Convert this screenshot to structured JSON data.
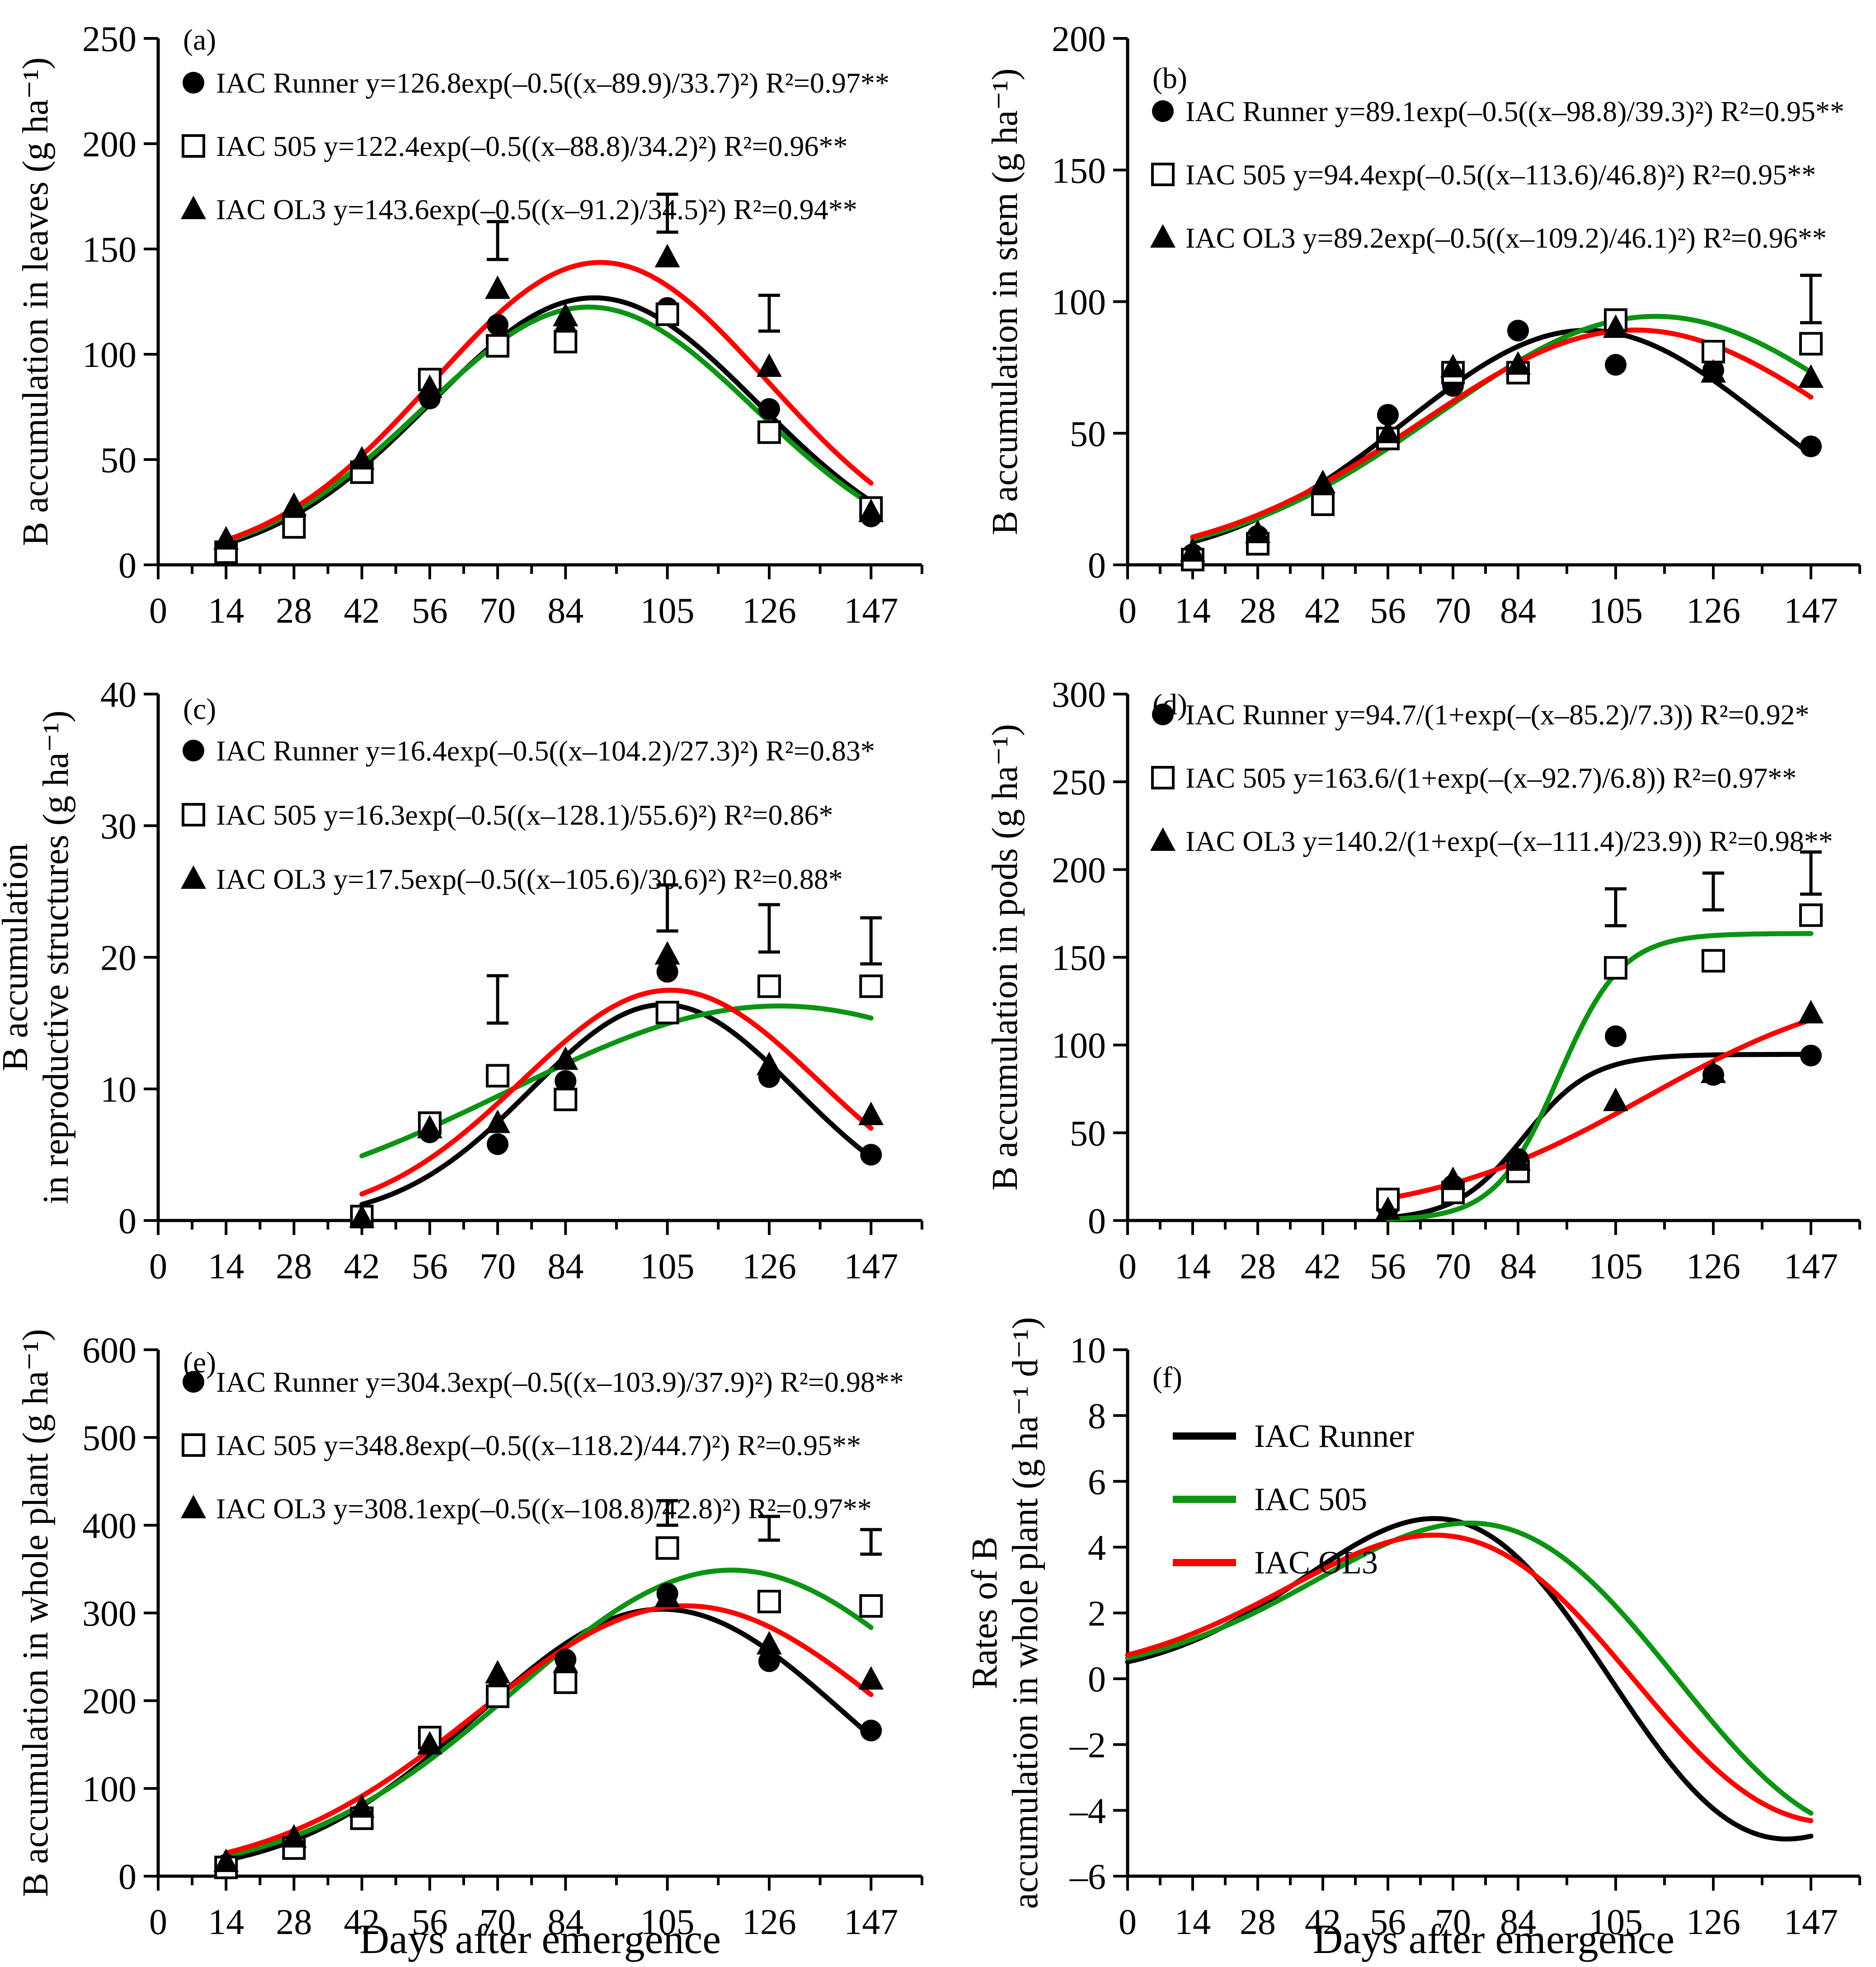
{
  "figure": {
    "xlabel": "Days after emergence",
    "x_ticks": [
      0,
      14,
      28,
      42,
      56,
      70,
      84,
      105,
      126,
      147
    ],
    "x_axis_max": 157.5,
    "x_data_max": 147,
    "series": [
      {
        "name": "IAC Runner",
        "color": "#000000",
        "marker": "filled-circle"
      },
      {
        "name": "IAC 505",
        "color": "#0b9413",
        "marker": "open-square"
      },
      {
        "name": "IAC OL3",
        "color": "#fe0000",
        "marker": "filled-triangle"
      }
    ]
  },
  "chart_data": [
    {
      "id": "a",
      "type": "scatter",
      "panel_label": "(a)",
      "y_title_lines": [
        "B accumulation in leaves (g ha⁻¹)"
      ],
      "ylim": [
        0,
        250
      ],
      "yticks": [
        0,
        50,
        100,
        150,
        200,
        250
      ],
      "legend_type": "markers",
      "legend": [
        {
          "series": "IAC Runner",
          "marker": "filled-circle",
          "text": "IAC Runner y=126.8exp(–0.5((x–89.9)/33.7)²) R²=0.97**"
        },
        {
          "series": "IAC 505",
          "marker": "open-square",
          "text": "IAC 505 y=122.4exp(–0.5((x–88.8)/34.2)²) R²=0.96**"
        },
        {
          "series": "IAC OL3",
          "marker": "filled-triangle",
          "text": "IAC OL3 y=143.6exp(–0.5((x–91.2)/34.5)²) R²=0.94**"
        }
      ],
      "fits": [
        {
          "series": "IAC Runner",
          "model": "gaussian",
          "params": [
            126.8,
            89.9,
            33.7
          ],
          "range": [
            14,
            147
          ]
        },
        {
          "series": "IAC 505",
          "model": "gaussian",
          "params": [
            122.4,
            88.8,
            34.2
          ],
          "range": [
            14,
            147
          ]
        },
        {
          "series": "IAC OL3",
          "model": "gaussian",
          "params": [
            143.6,
            91.2,
            34.5
          ],
          "range": [
            14,
            147
          ]
        }
      ],
      "points": {
        "IAC Runner": [
          [
            14,
            8
          ],
          [
            28,
            20
          ],
          [
            42,
            45
          ],
          [
            56,
            79
          ],
          [
            70,
            114
          ],
          [
            84,
            110
          ],
          [
            105,
            122
          ],
          [
            126,
            74
          ],
          [
            147,
            23
          ]
        ],
        "IAC 505": [
          [
            14,
            6
          ],
          [
            28,
            18
          ],
          [
            42,
            44
          ],
          [
            56,
            88
          ],
          [
            70,
            104
          ],
          [
            84,
            106
          ],
          [
            105,
            119
          ],
          [
            126,
            63
          ],
          [
            147,
            27
          ]
        ],
        "IAC OL3": [
          [
            14,
            12
          ],
          [
            28,
            28
          ],
          [
            42,
            50
          ],
          [
            56,
            84
          ],
          [
            70,
            131
          ],
          [
            84,
            118
          ],
          [
            105,
            146
          ],
          [
            126,
            94
          ],
          [
            147,
            25
          ]
        ]
      },
      "error_bars": [
        {
          "x": 70,
          "low": 145,
          "high": 163
        },
        {
          "x": 105,
          "low": 158,
          "high": 176
        },
        {
          "x": 126,
          "low": 111,
          "high": 128
        }
      ]
    },
    {
      "id": "b",
      "type": "scatter",
      "panel_label": "(b)",
      "y_title_lines": [
        "B accumulation in stem (g ha⁻¹)"
      ],
      "ylim": [
        0,
        200
      ],
      "yticks": [
        0,
        50,
        100,
        150,
        200
      ],
      "legend_type": "markers",
      "legend": [
        {
          "series": "IAC Runner",
          "marker": "filled-circle",
          "text": "IAC Runner y=89.1exp(–0.5((x–98.8)/39.3)²) R²=0.95**"
        },
        {
          "series": "IAC 505",
          "marker": "open-square",
          "text": "IAC 505 y=94.4exp(–0.5((x–113.6)/46.8)²) R²=0.95**"
        },
        {
          "series": "IAC OL3",
          "marker": "filled-triangle",
          "text": "IAC OL3 y=89.2exp(–0.5((x–109.2)/46.1)²) R²=0.96**"
        }
      ],
      "fits": [
        {
          "series": "IAC Runner",
          "model": "gaussian",
          "params": [
            89.1,
            98.8,
            39.3
          ],
          "range": [
            14,
            147
          ]
        },
        {
          "series": "IAC 505",
          "model": "gaussian",
          "params": [
            94.4,
            113.6,
            46.8
          ],
          "range": [
            14,
            147
          ]
        },
        {
          "series": "IAC OL3",
          "model": "gaussian",
          "params": [
            89.2,
            109.2,
            46.1
          ],
          "range": [
            14,
            147
          ]
        }
      ],
      "points": {
        "IAC Runner": [
          [
            14,
            4
          ],
          [
            28,
            11
          ],
          [
            42,
            27
          ],
          [
            56,
            57
          ],
          [
            70,
            68
          ],
          [
            84,
            89
          ],
          [
            105,
            76
          ],
          [
            126,
            74
          ],
          [
            147,
            45
          ]
        ],
        "IAC 505": [
          [
            14,
            2
          ],
          [
            28,
            8
          ],
          [
            42,
            23
          ],
          [
            56,
            48
          ],
          [
            70,
            73
          ],
          [
            84,
            73
          ],
          [
            105,
            93
          ],
          [
            126,
            81
          ],
          [
            147,
            84
          ]
        ],
        "IAC OL3": [
          [
            14,
            5
          ],
          [
            28,
            12
          ],
          [
            42,
            31
          ],
          [
            56,
            50
          ],
          [
            70,
            75
          ],
          [
            84,
            76
          ],
          [
            105,
            90
          ],
          [
            126,
            73
          ],
          [
            147,
            71
          ]
        ]
      },
      "error_bars": [
        {
          "x": 147,
          "low": 92,
          "high": 110
        }
      ]
    },
    {
      "id": "c",
      "type": "scatter",
      "panel_label": "(c)",
      "y_title_lines": [
        "B accumulation",
        "in reproductive structures (g ha⁻¹)"
      ],
      "ylim": [
        0,
        40
      ],
      "yticks": [
        0,
        10,
        20,
        30,
        40
      ],
      "legend_type": "markers",
      "legend": [
        {
          "series": "IAC Runner",
          "marker": "filled-circle",
          "text": "IAC Runner y=16.4exp(–0.5((x–104.2)/27.3)²) R²=0.83*"
        },
        {
          "series": "IAC 505",
          "marker": "open-square",
          "text": "IAC 505 y=16.3exp(–0.5((x–128.1)/55.6)²) R²=0.86*"
        },
        {
          "series": "IAC OL3",
          "marker": "filled-triangle",
          "text": "IAC OL3 y=17.5exp(–0.5((x–105.6)/30.6)²) R²=0.88*"
        }
      ],
      "fits": [
        {
          "series": "IAC Runner",
          "model": "gaussian",
          "params": [
            16.4,
            104.2,
            27.3
          ],
          "range": [
            42,
            147
          ]
        },
        {
          "series": "IAC 505",
          "model": "gaussian",
          "params": [
            16.3,
            128.1,
            55.6
          ],
          "range": [
            42,
            147
          ]
        },
        {
          "series": "IAC OL3",
          "model": "gaussian",
          "params": [
            17.5,
            105.6,
            30.6
          ],
          "range": [
            42,
            147
          ]
        }
      ],
      "points": {
        "IAC Runner": [
          [
            42,
            0.2
          ],
          [
            56,
            6.7
          ],
          [
            70,
            5.8
          ],
          [
            84,
            10.6
          ],
          [
            105,
            18.9
          ],
          [
            126,
            10.9
          ],
          [
            147,
            5.0
          ]
        ],
        "IAC 505": [
          [
            42,
            0.3
          ],
          [
            56,
            7.4
          ],
          [
            70,
            11.0
          ],
          [
            84,
            9.2
          ],
          [
            105,
            15.8
          ],
          [
            126,
            17.8
          ],
          [
            147,
            17.8
          ]
        ],
        "IAC OL3": [
          [
            42,
            0.2
          ],
          [
            56,
            7.0
          ],
          [
            70,
            7.4
          ],
          [
            84,
            12.2
          ],
          [
            105,
            20.2
          ],
          [
            126,
            11.8
          ],
          [
            147,
            8.0
          ]
        ]
      },
      "error_bars": [
        {
          "x": 70,
          "low": 15.0,
          "high": 18.6
        },
        {
          "x": 105,
          "low": 22.0,
          "high": 25.5
        },
        {
          "x": 126,
          "low": 20.4,
          "high": 24.0
        },
        {
          "x": 147,
          "low": 19.5,
          "high": 23.0
        }
      ]
    },
    {
      "id": "d",
      "type": "scatter",
      "panel_label": "(d)",
      "y_title_lines": [
        "B accumulation in pods (g ha⁻¹)"
      ],
      "ylim": [
        0,
        300
      ],
      "yticks": [
        0,
        50,
        100,
        150,
        200,
        250,
        300
      ],
      "legend_type": "markers",
      "legend": [
        {
          "series": "IAC Runner",
          "marker": "filled-circle",
          "text": "IAC Runner y=94.7/(1+exp(–(x–85.2)/7.3)) R²=0.92*"
        },
        {
          "series": "IAC 505",
          "marker": "open-square",
          "text": "IAC 505 y=163.6/(1+exp(–(x–92.7)/6.8)) R²=0.97**"
        },
        {
          "series": "IAC OL3",
          "marker": "filled-triangle",
          "text": "IAC OL3 y=140.2/(1+exp(–(x–111.4)/23.9)) R²=0.98**"
        }
      ],
      "fits": [
        {
          "series": "IAC Runner",
          "model": "logistic",
          "params": [
            94.7,
            85.2,
            7.3
          ],
          "range": [
            56,
            147
          ]
        },
        {
          "series": "IAC 505",
          "model": "logistic",
          "params": [
            163.6,
            92.7,
            6.8
          ],
          "range": [
            56,
            147
          ]
        },
        {
          "series": "IAC OL3",
          "model": "logistic",
          "params": [
            140.2,
            111.4,
            23.9
          ],
          "range": [
            56,
            147
          ]
        }
      ],
      "points": {
        "IAC Runner": [
          [
            56,
            7
          ],
          [
            70,
            20
          ],
          [
            84,
            35
          ],
          [
            105,
            105
          ],
          [
            126,
            83
          ],
          [
            147,
            94
          ]
        ],
        "IAC 505": [
          [
            56,
            12
          ],
          [
            70,
            16
          ],
          [
            84,
            28
          ],
          [
            105,
            144
          ],
          [
            126,
            148
          ],
          [
            147,
            174
          ]
        ],
        "IAC OL3": [
          [
            56,
            6
          ],
          [
            70,
            23
          ],
          [
            84,
            34
          ],
          [
            105,
            68
          ],
          [
            126,
            84
          ],
          [
            147,
            118
          ]
        ]
      },
      "error_bars": [
        {
          "x": 105,
          "low": 168,
          "high": 189
        },
        {
          "x": 126,
          "low": 177,
          "high": 198
        },
        {
          "x": 147,
          "low": 186,
          "high": 210
        }
      ]
    },
    {
      "id": "e",
      "type": "scatter",
      "panel_label": "(e)",
      "show_xlabel": true,
      "y_title_lines": [
        "B accumulation in whole plant (g ha⁻¹)"
      ],
      "ylim": [
        0,
        600
      ],
      "yticks": [
        0,
        100,
        200,
        300,
        400,
        500,
        600
      ],
      "legend_type": "markers",
      "legend": [
        {
          "series": "IAC Runner",
          "marker": "filled-circle",
          "text": "IAC Runner y=304.3exp(–0.5((x–103.9)/37.9)²) R²=0.98**"
        },
        {
          "series": "IAC 505",
          "marker": "open-square",
          "text": "IAC 505 y=348.8exp(–0.5((x–118.2)/44.7)²) R²=0.95**"
        },
        {
          "series": "IAC OL3",
          "marker": "filled-triangle",
          "text": "IAC OL3 y=308.1exp(–0.5((x–108.8)/42.8)²) R²=0.97**"
        }
      ],
      "fits": [
        {
          "series": "IAC Runner",
          "model": "gaussian",
          "params": [
            304.3,
            103.9,
            37.9
          ],
          "range": [
            14,
            147
          ]
        },
        {
          "series": "IAC 505",
          "model": "gaussian",
          "params": [
            348.8,
            118.2,
            44.7
          ],
          "range": [
            14,
            147
          ]
        },
        {
          "series": "IAC OL3",
          "model": "gaussian",
          "params": [
            308.1,
            108.8,
            42.8
          ],
          "range": [
            14,
            147
          ]
        }
      ],
      "points": {
        "IAC Runner": [
          [
            14,
            13
          ],
          [
            28,
            35
          ],
          [
            42,
            70
          ],
          [
            56,
            155
          ],
          [
            70,
            212
          ],
          [
            84,
            247
          ],
          [
            105,
            322
          ],
          [
            126,
            245
          ],
          [
            147,
            166
          ]
        ],
        "IAC 505": [
          [
            14,
            10
          ],
          [
            28,
            32
          ],
          [
            42,
            66
          ],
          [
            56,
            158
          ],
          [
            70,
            205
          ],
          [
            84,
            221
          ],
          [
            105,
            374
          ],
          [
            126,
            313
          ],
          [
            147,
            308
          ]
        ],
        "IAC OL3": [
          [
            14,
            16
          ],
          [
            28,
            44
          ],
          [
            42,
            78
          ],
          [
            56,
            150
          ],
          [
            70,
            231
          ],
          [
            84,
            243
          ],
          [
            105,
            318
          ],
          [
            126,
            264
          ],
          [
            147,
            224
          ]
        ]
      },
      "error_bars": [
        {
          "x": 105,
          "low": 400,
          "high": 428
        },
        {
          "x": 126,
          "low": 383,
          "high": 410
        },
        {
          "x": 147,
          "low": 367,
          "high": 395
        }
      ]
    },
    {
      "id": "f",
      "type": "line",
      "panel_label": "(f)",
      "show_xlabel": true,
      "y_title_lines": [
        "Rates of B",
        "accumulation in whole plant (g ha⁻¹ d⁻¹)"
      ],
      "ylim": [
        -6,
        10
      ],
      "yticks": [
        -6,
        -4,
        -2,
        0,
        2,
        4,
        6,
        8,
        10
      ],
      "legend_type": "lines",
      "legend": [
        {
          "series": "IAC Runner",
          "text": "IAC Runner"
        },
        {
          "series": "IAC 505",
          "text": "IAC 505"
        },
        {
          "series": "IAC OL3",
          "text": "IAC OL3"
        }
      ],
      "fits": [
        {
          "series": "IAC Runner",
          "model": "gaussian_derivative",
          "params": [
            304.3,
            103.9,
            37.9
          ],
          "range": [
            0,
            147
          ]
        },
        {
          "series": "IAC 505",
          "model": "gaussian_derivative",
          "params": [
            348.8,
            118.2,
            44.7
          ],
          "range": [
            0,
            147
          ]
        },
        {
          "series": "IAC OL3",
          "model": "gaussian_derivative",
          "params": [
            308.1,
            108.8,
            42.8
          ],
          "range": [
            0,
            147
          ]
        }
      ],
      "points": {},
      "error_bars": []
    }
  ]
}
